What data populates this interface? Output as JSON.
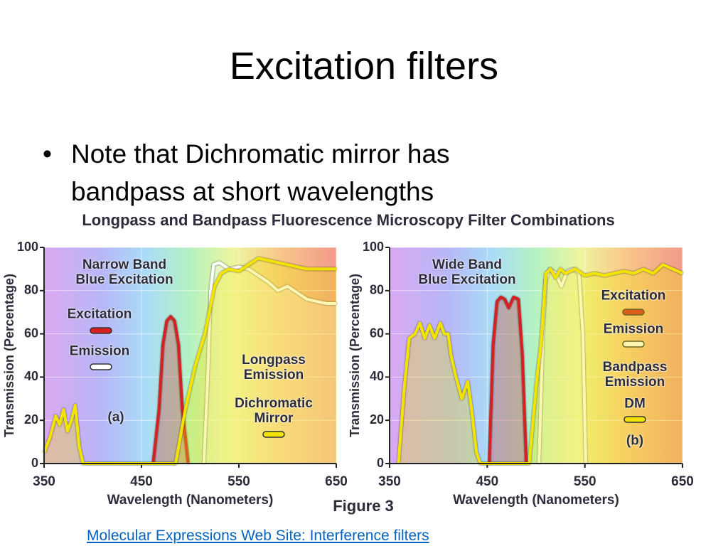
{
  "slide": {
    "title": "Excitation filters",
    "bullet": "Note that Dichromatic mirror has bandpass at short wavelengths",
    "link": "Molecular Expressions Web Site: Interference filters"
  },
  "figure": {
    "title": "Longpass and Bandpass Fluorescence Microscopy Filter Combinations",
    "caption": "Figure 3"
  },
  "chart_data": [
    {
      "type": "line",
      "x_label": "Wavelength (Nanometers)",
      "y_label": "Transmission (Percentage)",
      "xlim": [
        350,
        650
      ],
      "xticks": [
        350,
        450,
        550,
        650
      ],
      "ylim": [
        0,
        100
      ],
      "yticks": [
        0,
        20,
        40,
        60,
        80,
        100
      ],
      "grid": true,
      "annotations": [
        "Narrow Band\nBlue Excitation",
        "Longpass\nEmission",
        "(a)"
      ],
      "series": [
        {
          "name": "Excitation",
          "color": "#d42121",
          "x": [
            462,
            468,
            472,
            476,
            480,
            484,
            488,
            492,
            498
          ],
          "values": [
            0,
            25,
            55,
            66,
            68,
            66,
            55,
            25,
            0
          ]
        },
        {
          "name": "Emission",
          "color": "#ffffff",
          "x": [
            514,
            518,
            521,
            524,
            530,
            540,
            550,
            560,
            570,
            580,
            590,
            600,
            610,
            620,
            630,
            640,
            650
          ],
          "values": [
            0,
            40,
            80,
            92,
            93,
            90,
            91,
            90,
            87,
            84,
            80,
            82,
            79,
            76,
            75,
            74,
            74
          ]
        },
        {
          "name": "Dichromatic\nMirror",
          "color": "#f2e400",
          "x": [
            350,
            356,
            362,
            366,
            370,
            374,
            378,
            382,
            386,
            390,
            485,
            495,
            505,
            515,
            525,
            532,
            540,
            550,
            560,
            570,
            580,
            590,
            600,
            610,
            620,
            630,
            640,
            650
          ],
          "values": [
            5,
            12,
            22,
            18,
            25,
            15,
            20,
            27,
            8,
            0,
            0,
            25,
            45,
            60,
            82,
            88,
            90,
            89,
            92,
            95,
            94,
            93,
            92,
            91,
            90,
            90,
            90,
            90
          ]
        }
      ]
    },
    {
      "type": "line",
      "x_label": "Wavelength (Nanometers)",
      "y_label": "Transmission (Percentage)",
      "xlim": [
        350,
        650
      ],
      "xticks": [
        350,
        450,
        550,
        650
      ],
      "ylim": [
        0,
        100
      ],
      "yticks": [
        0,
        20,
        40,
        60,
        80,
        100
      ],
      "grid": true,
      "annotations": [
        "Wide Band\nBlue Excitation",
        "Bandpass\nEmission",
        "(b)"
      ],
      "series": [
        {
          "name": "Excitation",
          "color": "#d42121",
          "x": [
            452,
            456,
            460,
            464,
            468,
            472,
            477,
            482,
            486,
            490
          ],
          "values": [
            0,
            55,
            75,
            77,
            76,
            72,
            77,
            76,
            50,
            0
          ]
        },
        {
          "name": "Emission",
          "color": "#ffffff",
          "x": [
            503,
            507,
            510,
            514,
            520,
            526,
            532,
            538,
            544,
            548,
            551
          ],
          "values": [
            0,
            60,
            85,
            90,
            88,
            82,
            89,
            90,
            88,
            60,
            0
          ]
        },
        {
          "name": "DM",
          "color": "#f2e400",
          "x": [
            359,
            365,
            370,
            376,
            381,
            386,
            391,
            396,
            402,
            406,
            410,
            413,
            418,
            424,
            430,
            434,
            439,
            443,
            493,
            497,
            501,
            505,
            510,
            515,
            520,
            525,
            530,
            540,
            550,
            560,
            570,
            580,
            590,
            600,
            610,
            620,
            630,
            640,
            650
          ],
          "values": [
            0,
            35,
            58,
            60,
            65,
            58,
            64,
            58,
            65,
            60,
            60,
            50,
            40,
            30,
            38,
            25,
            5,
            0,
            0,
            20,
            40,
            55,
            88,
            90,
            86,
            90,
            88,
            90,
            87,
            88,
            87,
            88,
            89,
            88,
            90,
            88,
            92,
            90,
            88
          ]
        }
      ]
    }
  ]
}
